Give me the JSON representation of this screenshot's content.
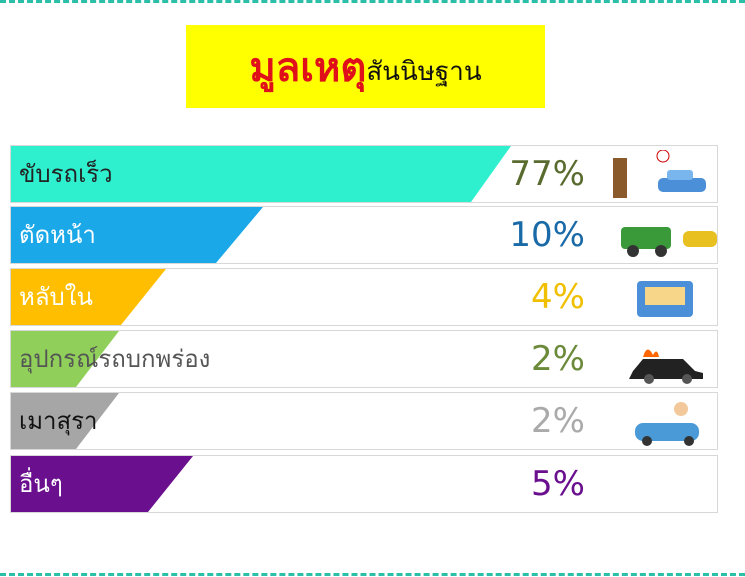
{
  "title": {
    "main": "มูลเหตุ",
    "sub": "สันนิษฐาน"
  },
  "rows": [
    {
      "label": "ขับรถเร็ว",
      "value": "77%"
    },
    {
      "label": "ตัดหน้า",
      "value": "10%"
    },
    {
      "label": "หลับใน",
      "value": "4%"
    },
    {
      "label": "อุปกรณ์รถบกพร่อง",
      "value": "2%"
    },
    {
      "label": "เมาสุรา",
      "value": "2%"
    },
    {
      "label": "อื่นๆ",
      "value": "5%"
    }
  ]
}
